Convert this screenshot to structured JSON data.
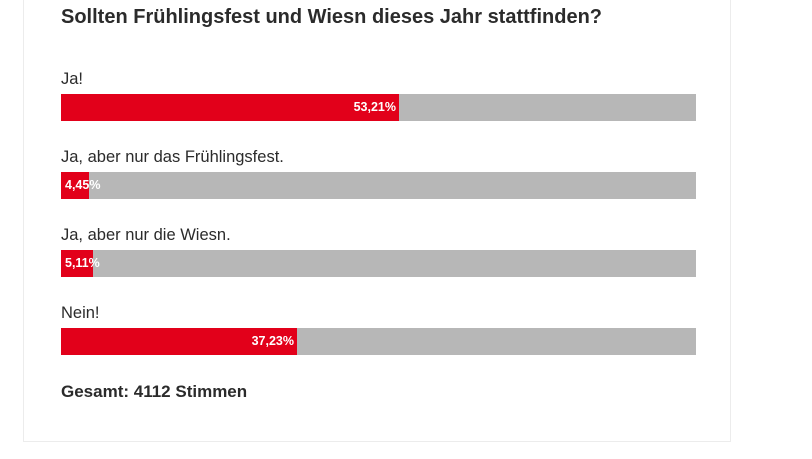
{
  "poll": {
    "question": "Sollten Frühlingsfest und Wiesn dieses Jahr stattfinden?",
    "options": [
      {
        "label": "Ja!",
        "percent_text": "53,21%",
        "percent": 53.21
      },
      {
        "label": "Ja, aber nur das Frühlingsfest.",
        "percent_text": "4,45%",
        "percent": 4.45
      },
      {
        "label": "Ja, aber nur die Wiesn.",
        "percent_text": "5,11%",
        "percent": 5.11
      },
      {
        "label": "Nein!",
        "percent_text": "37,23%",
        "percent": 37.23
      }
    ],
    "total_text": "Gesamt: 4112 Stimmen"
  },
  "colors": {
    "bar_fill": "#e2001a",
    "bar_track": "#b7b7b7",
    "text": "#2b2b2b"
  }
}
